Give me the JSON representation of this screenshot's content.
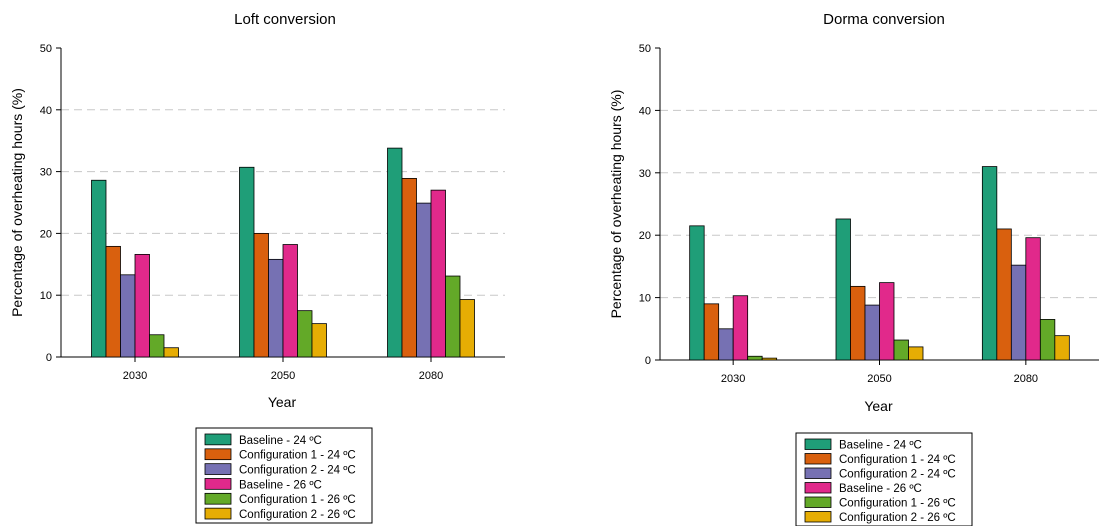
{
  "series_style": [
    {
      "color": "#1f9e78"
    },
    {
      "color": "#d9600e"
    },
    {
      "color": "#7671b3"
    },
    {
      "color": "#e1298b"
    },
    {
      "color": "#63a928"
    },
    {
      "color": "#e6ad04"
    }
  ],
  "chart_data": [
    {
      "type": "bar",
      "title": "Loft conversion",
      "xlabel": "Year",
      "ylabel": "Percentage of overheating hours (%)",
      "ylim": [
        0,
        50
      ],
      "yticks": [
        0,
        10,
        20,
        30,
        40,
        50
      ],
      "grid": "horizontal dashed",
      "legend_position": "bottom",
      "categories": [
        "2030",
        "2050",
        "2080"
      ],
      "series": [
        {
          "name": "Baseline - 24 ºC",
          "values": [
            28.6,
            30.7,
            33.8
          ]
        },
        {
          "name": "Configuration 1 - 24 ºC",
          "values": [
            17.9,
            20.0,
            28.9
          ]
        },
        {
          "name": "Configuration 2 - 24 ºC",
          "values": [
            13.3,
            15.8,
            24.9
          ]
        },
        {
          "name": "Baseline - 26 ºC",
          "values": [
            16.6,
            18.2,
            27.0
          ]
        },
        {
          "name": "Configuration 1 - 26 ºC",
          "values": [
            3.6,
            7.5,
            13.1
          ]
        },
        {
          "name": "Configuration 2 - 26 ºC",
          "values": [
            1.5,
            5.4,
            9.3
          ]
        }
      ]
    },
    {
      "type": "bar",
      "title": "Dorma conversion",
      "xlabel": "Year",
      "ylabel": "Percentage of overheating hours (%)",
      "ylim": [
        0,
        50
      ],
      "yticks": [
        0,
        10,
        20,
        30,
        40,
        50
      ],
      "grid": "horizontal dashed",
      "legend_position": "bottom",
      "categories": [
        "2030",
        "2050",
        "2080"
      ],
      "series": [
        {
          "name": "Baseline - 24 ºC",
          "values": [
            21.5,
            22.6,
            31.0
          ]
        },
        {
          "name": "Configuration 1 - 24 ºC",
          "values": [
            9.0,
            11.8,
            21.0
          ]
        },
        {
          "name": "Configuration 2 - 24 ºC",
          "values": [
            5.0,
            8.8,
            15.2
          ]
        },
        {
          "name": "Baseline - 26 ºC",
          "values": [
            10.3,
            12.4,
            19.6
          ]
        },
        {
          "name": "Configuration 1 - 26 ºC",
          "values": [
            0.6,
            3.2,
            6.5
          ]
        },
        {
          "name": "Configuration 2 - 26 ºC",
          "values": [
            0.3,
            2.1,
            3.9
          ]
        }
      ]
    }
  ]
}
